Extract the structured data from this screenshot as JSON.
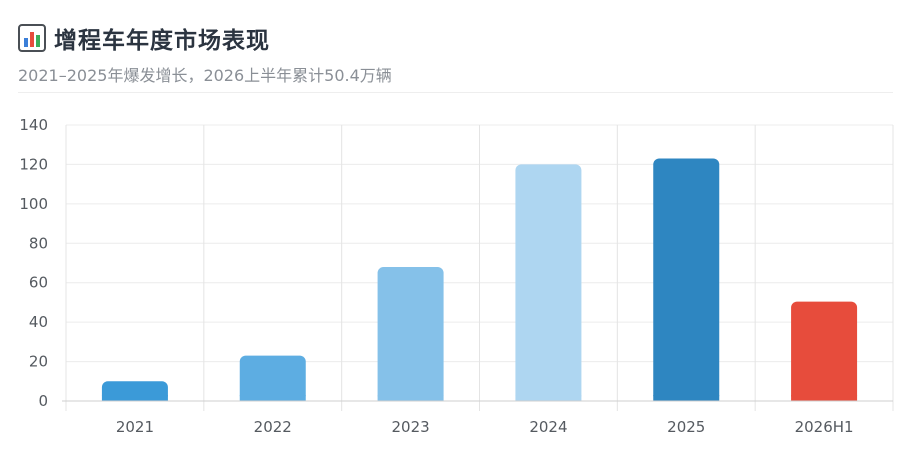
{
  "header": {
    "icon": "bar-chart-icon",
    "title": "增程车年度市场表现",
    "subtitle": "2021–2025年爆发增长，2026上半年累计50.4万辆"
  },
  "chart_data": {
    "type": "bar",
    "categories": [
      "2021",
      "2022",
      "2023",
      "2024",
      "2025",
      "2026H1"
    ],
    "values": [
      10,
      23,
      68,
      120,
      123,
      50.4
    ],
    "colors": [
      "#3b9ad8",
      "#5dade2",
      "#85c1e9",
      "#aed6f1",
      "#2e86c1",
      "#e74c3c"
    ],
    "ylim": [
      0,
      140
    ],
    "yticks": [
      0,
      20,
      40,
      60,
      80,
      100,
      120,
      140
    ],
    "grid": true,
    "legend": "none"
  }
}
